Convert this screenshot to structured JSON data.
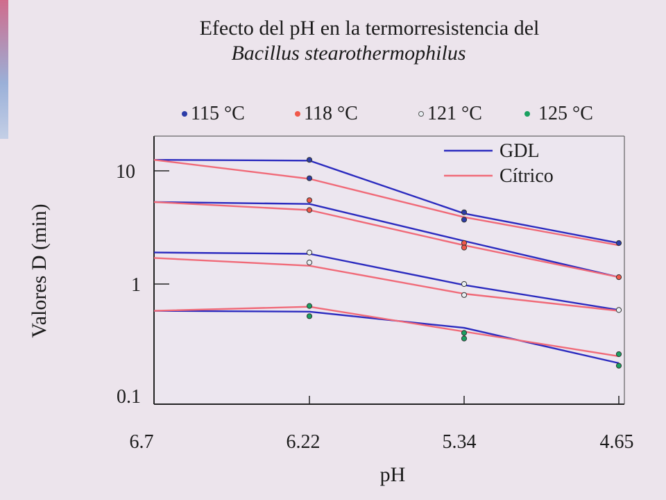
{
  "title": "Efecto del pH en la termorresistencia del",
  "subtitle": "Bacillus stearothermophilus",
  "colors": {
    "gdl": "#2b2bbf",
    "citrico": "#f06a78",
    "t115": "#2c3ca8",
    "t118": "#f0584a",
    "t121": "#e8eef2",
    "t125": "#1aa060"
  },
  "temp_legend": [
    {
      "label": "115 °C",
      "color": "#2c3ca8"
    },
    {
      "label": "118 °C",
      "color": "#f0584a"
    },
    {
      "label": "121 °C",
      "color": "#e8eef2"
    },
    {
      "label": "125 °C",
      "color": "#1aa060"
    }
  ],
  "chart_data": {
    "type": "line",
    "xlabel": "pH",
    "ylabel": "Valores D (min)",
    "x": [
      "6.7",
      "6.22",
      "5.34",
      "4.65"
    ],
    "y_scale": "log",
    "ylim": [
      0.1,
      20
    ],
    "y_ticks": [
      "10",
      "1",
      "0.1"
    ],
    "legend": [
      {
        "label": "GDL",
        "color": "#2b2bbf"
      },
      {
        "label": "Cítrico",
        "color": "#f06a78"
      }
    ],
    "legend_position": "top-right",
    "grid": false,
    "series": [
      {
        "acid": "GDL",
        "temperature": "115 °C",
        "values": [
          12.5,
          12.3,
          4.2,
          2.3
        ]
      },
      {
        "acid": "Cítrico",
        "temperature": "115 °C",
        "values": [
          12.5,
          8.5,
          3.9,
          2.2
        ]
      },
      {
        "acid": "GDL",
        "temperature": "118 °C",
        "values": [
          5.3,
          5.1,
          2.4,
          1.15
        ]
      },
      {
        "acid": "Cítrico",
        "temperature": "118 °C",
        "values": [
          5.3,
          4.5,
          2.2,
          1.15
        ]
      },
      {
        "acid": "GDL",
        "temperature": "121 °C",
        "values": [
          1.9,
          1.85,
          0.98,
          0.59
        ]
      },
      {
        "acid": "Cítrico",
        "temperature": "121 °C",
        "values": [
          1.7,
          1.45,
          0.82,
          0.58
        ]
      },
      {
        "acid": "GDL",
        "temperature": "125 °C",
        "values": [
          0.58,
          0.57,
          0.41,
          0.2
        ]
      },
      {
        "acid": "Cítrico",
        "temperature": "125 °C",
        "values": [
          0.58,
          0.63,
          0.38,
          0.23
        ]
      }
    ],
    "points": [
      {
        "temperature": "115 °C",
        "x": "6.22",
        "values": [
          12.5,
          8.6
        ]
      },
      {
        "temperature": "115 °C",
        "x": "5.34",
        "values": [
          4.3,
          3.7
        ]
      },
      {
        "temperature": "115 °C",
        "x": "4.65",
        "values": [
          2.3
        ]
      },
      {
        "temperature": "118 °C",
        "x": "6.22",
        "values": [
          5.5,
          4.5
        ]
      },
      {
        "temperature": "118 °C",
        "x": "5.34",
        "values": [
          2.3,
          2.1
        ]
      },
      {
        "temperature": "118 °C",
        "x": "4.65",
        "values": [
          1.15
        ]
      },
      {
        "temperature": "121 °C",
        "x": "6.22",
        "values": [
          1.9,
          1.55
        ]
      },
      {
        "temperature": "121 °C",
        "x": "5.34",
        "values": [
          1.0,
          0.8
        ]
      },
      {
        "temperature": "121 °C",
        "x": "4.65",
        "values": [
          0.59
        ]
      },
      {
        "temperature": "125 °C",
        "x": "6.22",
        "values": [
          0.64,
          0.52
        ]
      },
      {
        "temperature": "125 °C",
        "x": "5.34",
        "values": [
          0.37,
          0.33
        ]
      },
      {
        "temperature": "125 °C",
        "x": "4.65",
        "values": [
          0.24,
          0.19
        ]
      }
    ]
  }
}
